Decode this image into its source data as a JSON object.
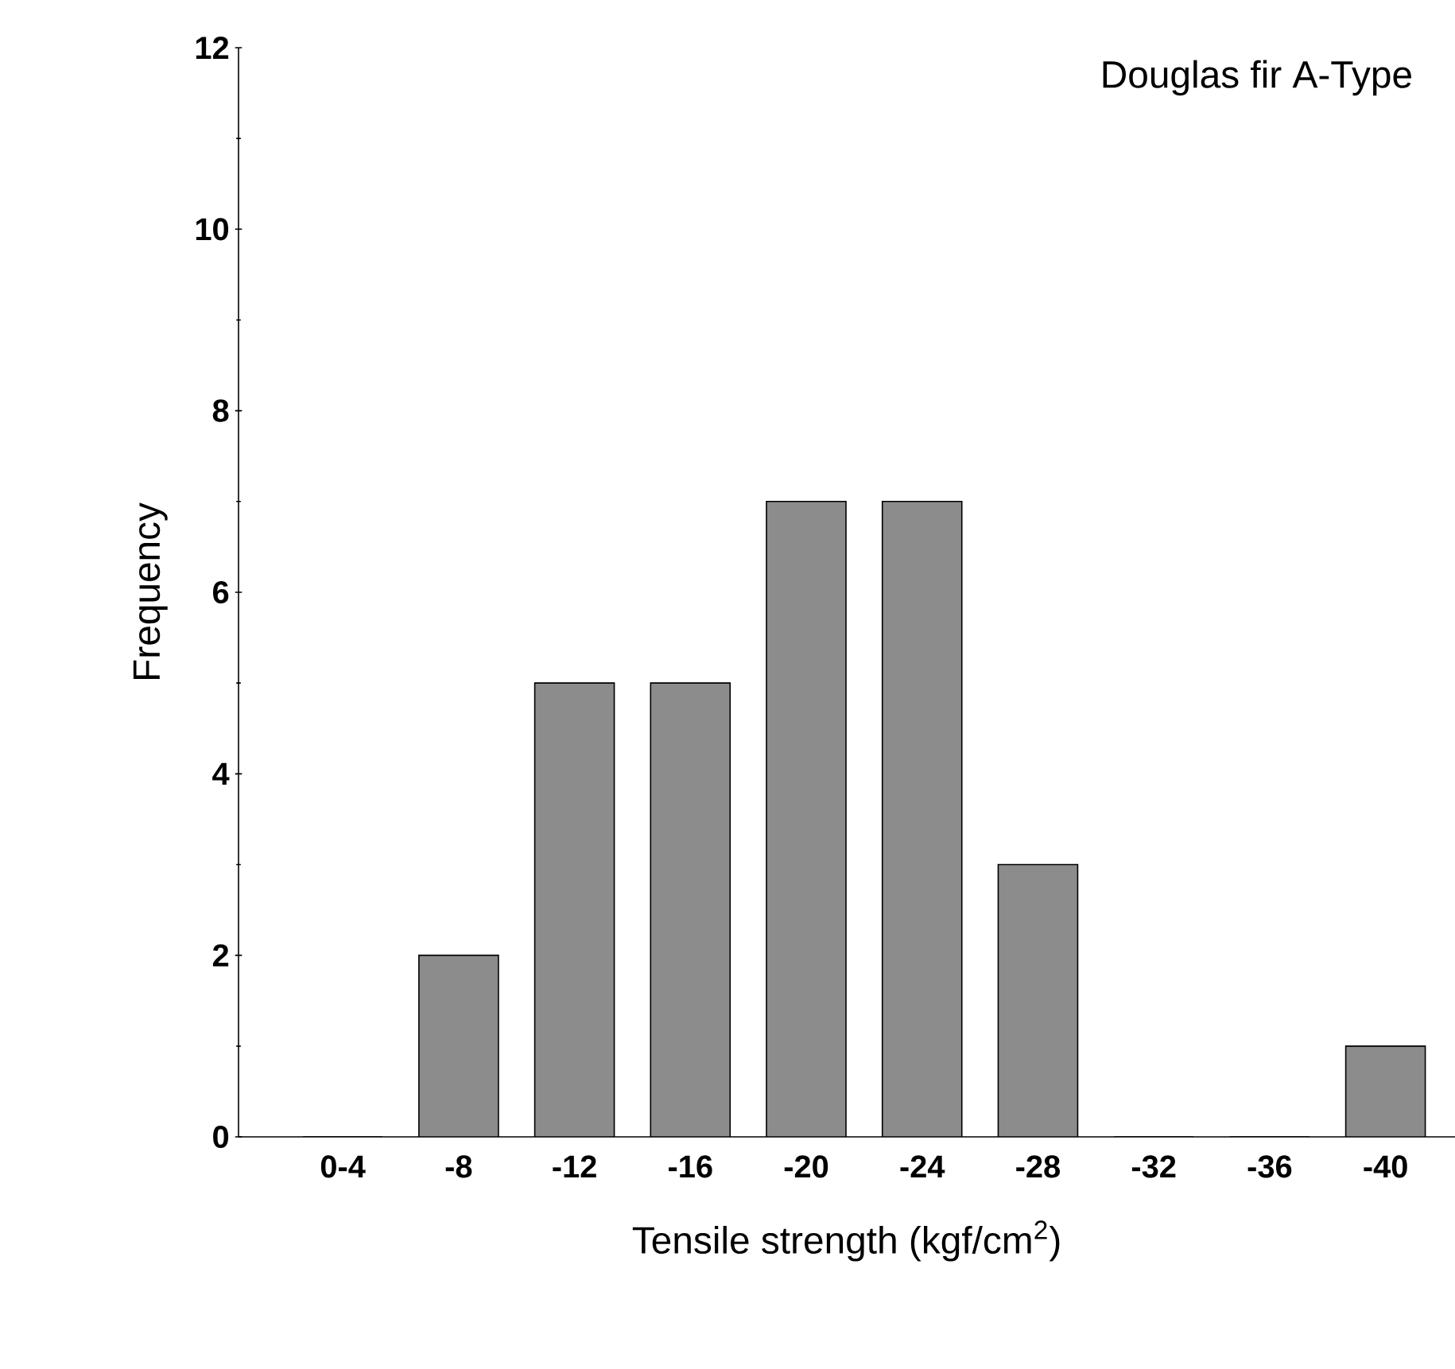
{
  "chart_data": {
    "type": "bar",
    "title": "Douglas fir  A-Type",
    "xlabel": "Tensile strength  (kgf/cm$^{2}$)",
    "ylabel": "Frequency",
    "categories": [
      "0-4",
      "-8",
      "-12",
      "-16",
      "-20",
      "-24",
      "-28",
      "-32",
      "-36",
      "-40"
    ],
    "values": [
      0,
      2,
      5,
      5,
      7,
      7,
      3,
      0,
      0,
      1
    ],
    "color": "#8c8c8c",
    "ylim": [
      0,
      12
    ],
    "yticks": [
      0,
      2,
      4,
      6,
      8,
      10,
      12
    ],
    "grid": false
  }
}
